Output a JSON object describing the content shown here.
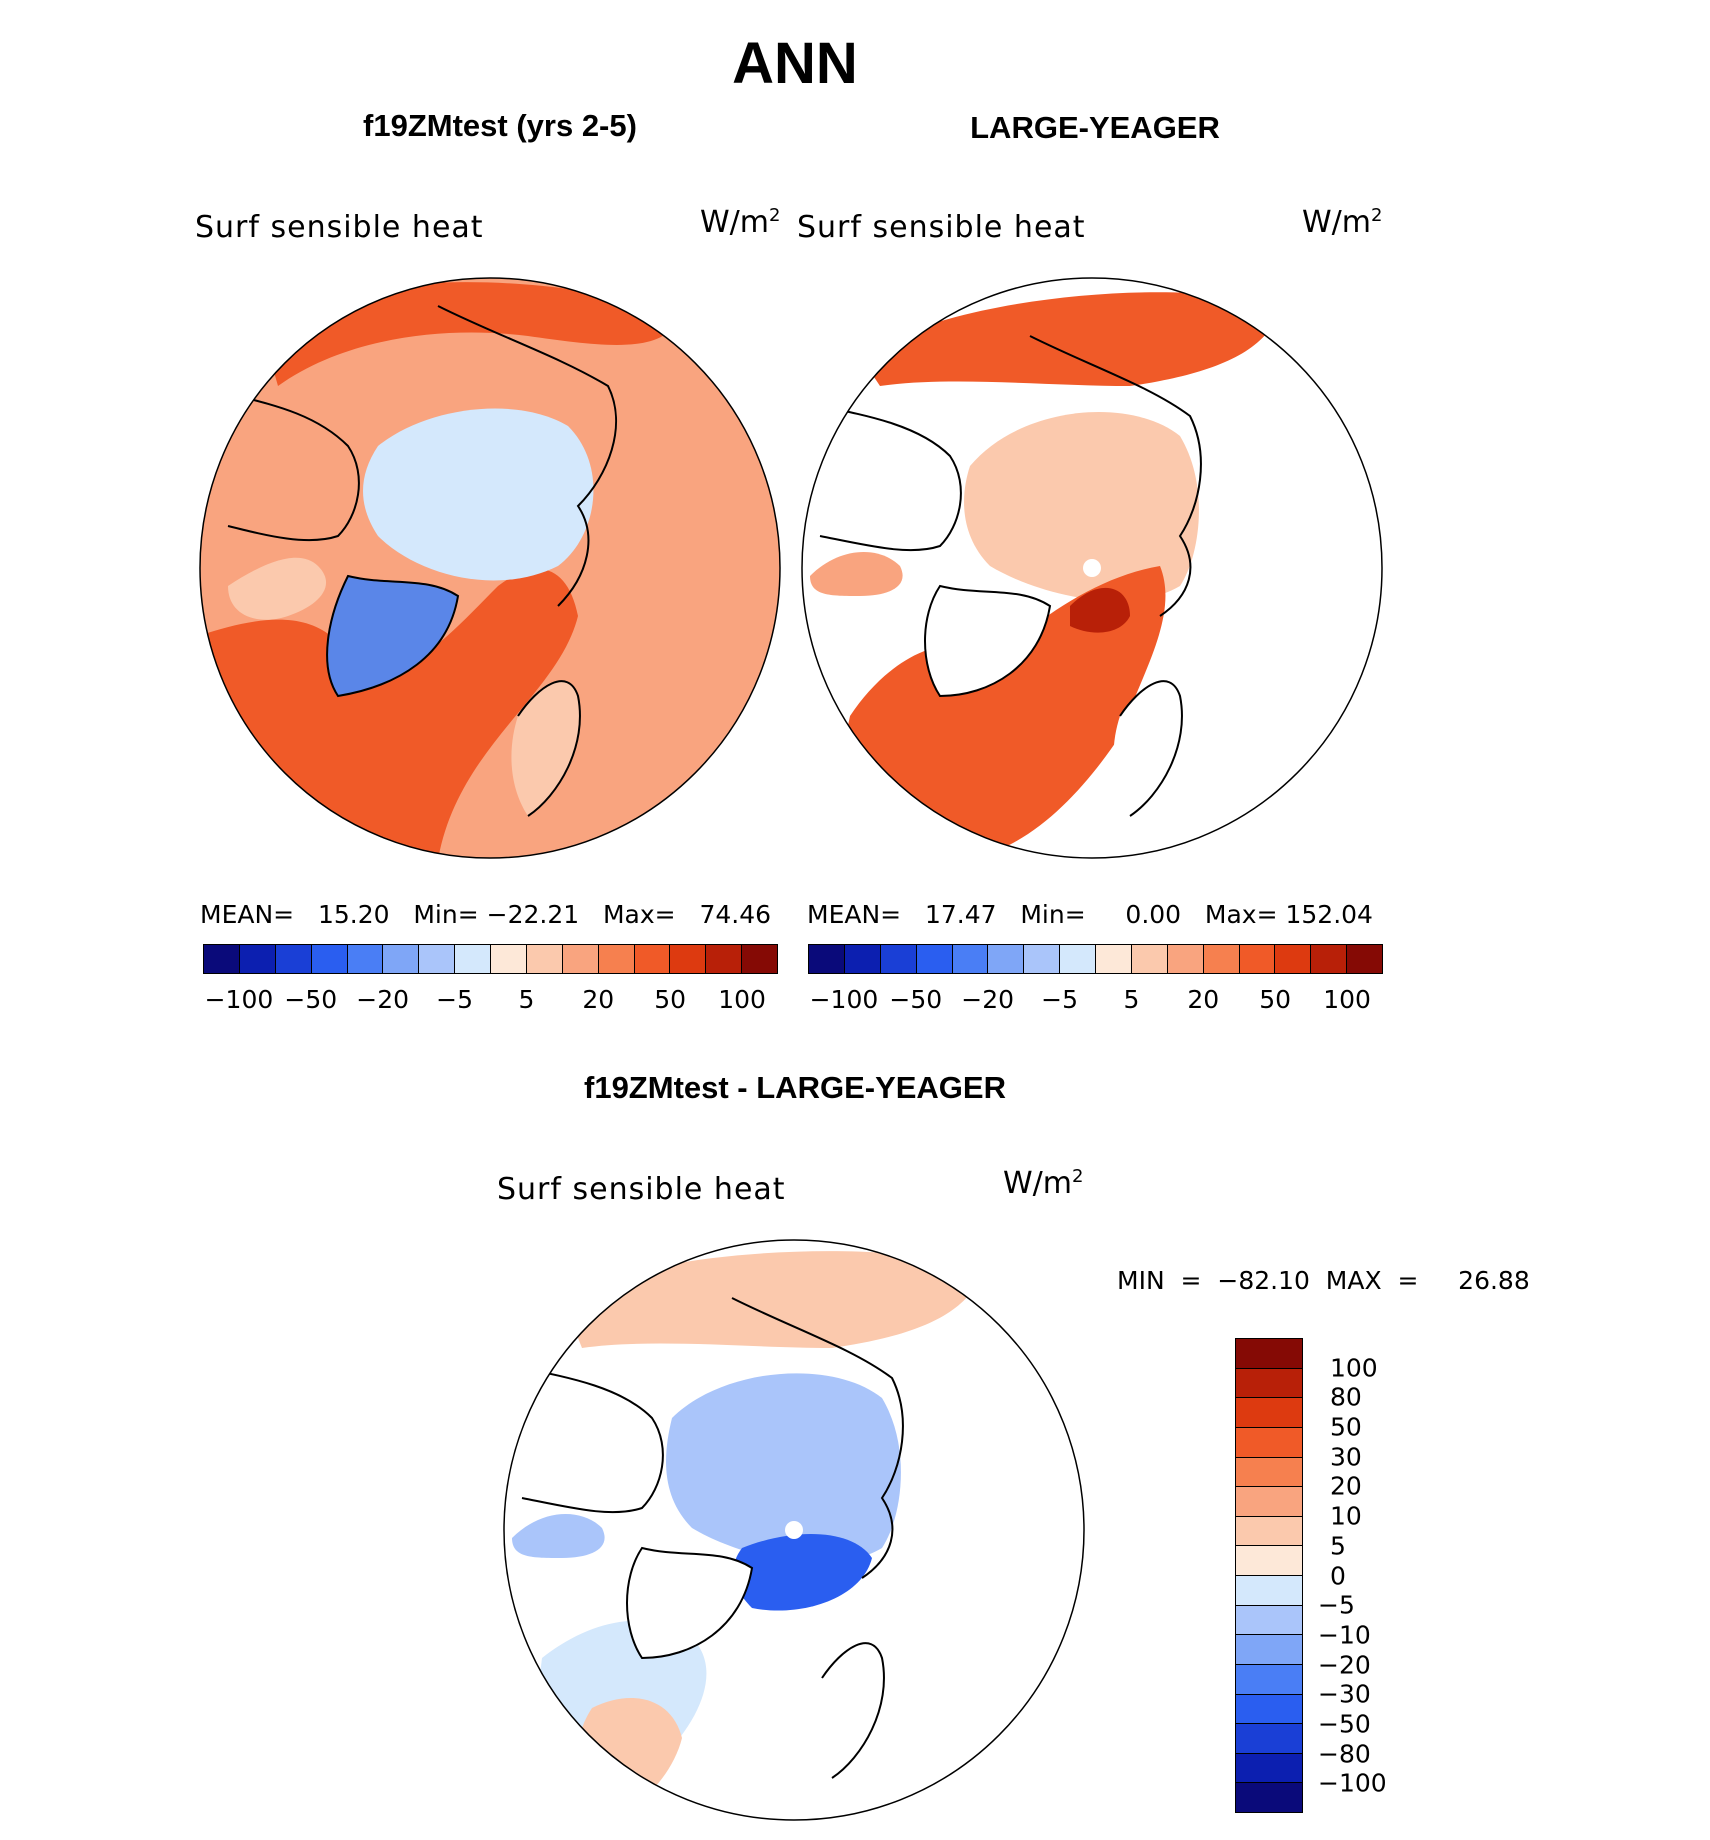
{
  "title": "ANN",
  "panels": [
    {
      "id": "model",
      "title": "f19ZMtest (yrs 2-5)",
      "variable": "Surf sensible heat",
      "units": "W/m",
      "units_sup": "2",
      "stats": "MEAN=   15.20   Min= −22.21   Max=   74.46",
      "colorbar_ticks": [
        "−100",
        "−50",
        "−20",
        "−5",
        "5",
        "20",
        "50",
        "100"
      ]
    },
    {
      "id": "obs",
      "title": "LARGE-YEAGER",
      "variable": "Surf sensible heat",
      "units": "W/m",
      "units_sup": "2",
      "stats": "MEAN=   17.47   Min=     0.00   Max= 152.04",
      "colorbar_ticks": [
        "−100",
        "−50",
        "−20",
        "−5",
        "5",
        "20",
        "50",
        "100"
      ]
    }
  ],
  "diff": {
    "title": "f19ZMtest - LARGE-YEAGER",
    "variable": "Surf sensible heat",
    "units": "W/m",
    "units_sup": "2",
    "stats": "MIN  =  −82.10  MAX  =     26.88",
    "colorbar_ticks": [
      "100",
      "80",
      "50",
      "30",
      "20",
      "10",
      "5",
      "0",
      "−5",
      "−10",
      "−20",
      "−30",
      "−50",
      "−80",
      "−100"
    ]
  },
  "palette_top": [
    "#0a0a7a",
    "#0c1fb0",
    "#1a3fd6",
    "#2a5ef0",
    "#4a7ef5",
    "#7fa6f7",
    "#aac5fa",
    "#d4e8fc",
    "#fde8d8",
    "#fbc9ad",
    "#f9a47f",
    "#f6804f",
    "#f05a28",
    "#dd3a10",
    "#b82008",
    "#850a05"
  ],
  "palette_diff": [
    "#850a05",
    "#b82008",
    "#dd3a10",
    "#f05a28",
    "#f6804f",
    "#f9a47f",
    "#fbc9ad",
    "#fde8d8",
    "#d4e8fc",
    "#aac5fa",
    "#7fa6f7",
    "#4a7ef5",
    "#2a5ef0",
    "#1a3fd6",
    "#0c1fb0",
    "#0a0a7a"
  ],
  "colors": {
    "ocean_warm": "#f9a47f",
    "ocean_hot": "#f05a28",
    "ice_cool": "#d4e8fc",
    "greenland_cold": "#5a86e8",
    "diff_neg": "#aac5fa",
    "diff_neg_strong": "#2a5ef0",
    "diff_pos": "#fbc9ad"
  }
}
